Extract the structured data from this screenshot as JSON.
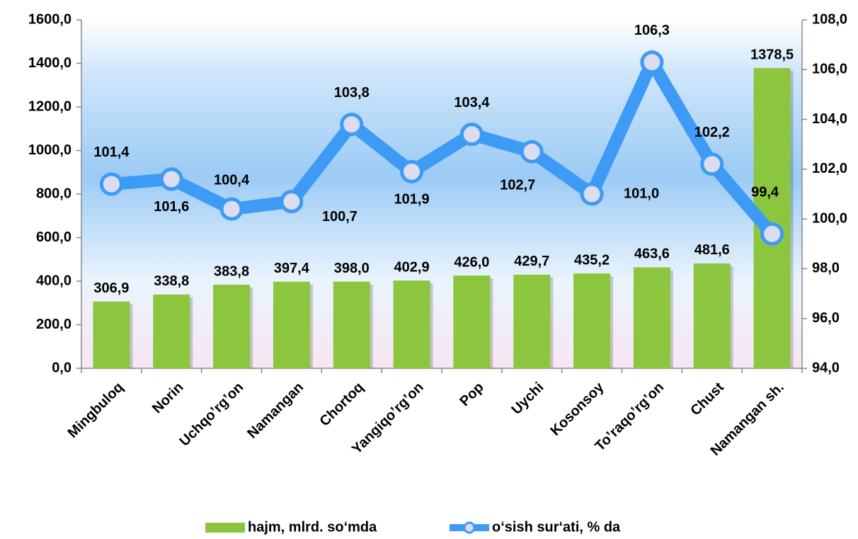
{
  "chart_data": {
    "type": "bar",
    "categories": [
      "Mingbuloq",
      "Norin",
      "Uchqo’rg’on",
      "Namangan",
      "Chortoq",
      "Yangiqo’rg’on",
      "Pop",
      "Uychi",
      "Kosonsoy",
      "To’raqo’rg’on",
      "Chust",
      "Namangan sh."
    ],
    "series": [
      {
        "name": "hajm, mlrd. so‘mda",
        "type": "bar",
        "color": "#8cc63e",
        "values": [
          306.9,
          338.8,
          383.8,
          397.4,
          398.0,
          402.9,
          426.0,
          429.7,
          435.2,
          463.6,
          481.6,
          1378.5
        ],
        "value_labels": [
          "306,9",
          "338,8",
          "383,8",
          "397,4",
          "398,0",
          "402,9",
          "426,0",
          "429,7",
          "435,2",
          "463,6",
          "481,6",
          "1378,5"
        ]
      },
      {
        "name": "o‘sish sur‘ati, % da",
        "type": "line",
        "axis": "y2",
        "color": "#3d9bf5",
        "values": [
          101.4,
          101.6,
          100.4,
          100.7,
          103.8,
          101.9,
          103.4,
          102.7,
          101.0,
          106.3,
          102.2,
          99.4
        ],
        "value_labels": [
          "101,4",
          "101,6",
          "100,4",
          "100,7",
          "103,8",
          "101,9",
          "103,4",
          "102,7",
          "101,0",
          "106,3",
          "102,2",
          "99,4"
        ]
      }
    ],
    "ylim": [
      0,
      1600
    ],
    "yticks": [
      {
        "value": 0,
        "label": "0,0"
      },
      {
        "value": 200,
        "label": "200,0"
      },
      {
        "value": 400,
        "label": "400,0"
      },
      {
        "value": 600,
        "label": "600,0"
      },
      {
        "value": 800,
        "label": "800,0"
      },
      {
        "value": 1000,
        "label": "1000,0"
      },
      {
        "value": 1200,
        "label": "1200,0"
      },
      {
        "value": 1400,
        "label": "1400,0"
      },
      {
        "value": 1600,
        "label": "1600,0"
      }
    ],
    "y2lim": [
      94,
      108
    ],
    "y2ticks": [
      {
        "value": 94,
        "label": "94,0"
      },
      {
        "value": 96,
        "label": "96,0"
      },
      {
        "value": 98,
        "label": "98,0"
      },
      {
        "value": 100,
        "label": "100,0"
      },
      {
        "value": 102,
        "label": "102,0"
      },
      {
        "value": 104,
        "label": "104,0"
      },
      {
        "value": 106,
        "label": "106,0"
      },
      {
        "value": 108,
        "label": "108,0"
      }
    ],
    "legend": "bottom"
  }
}
